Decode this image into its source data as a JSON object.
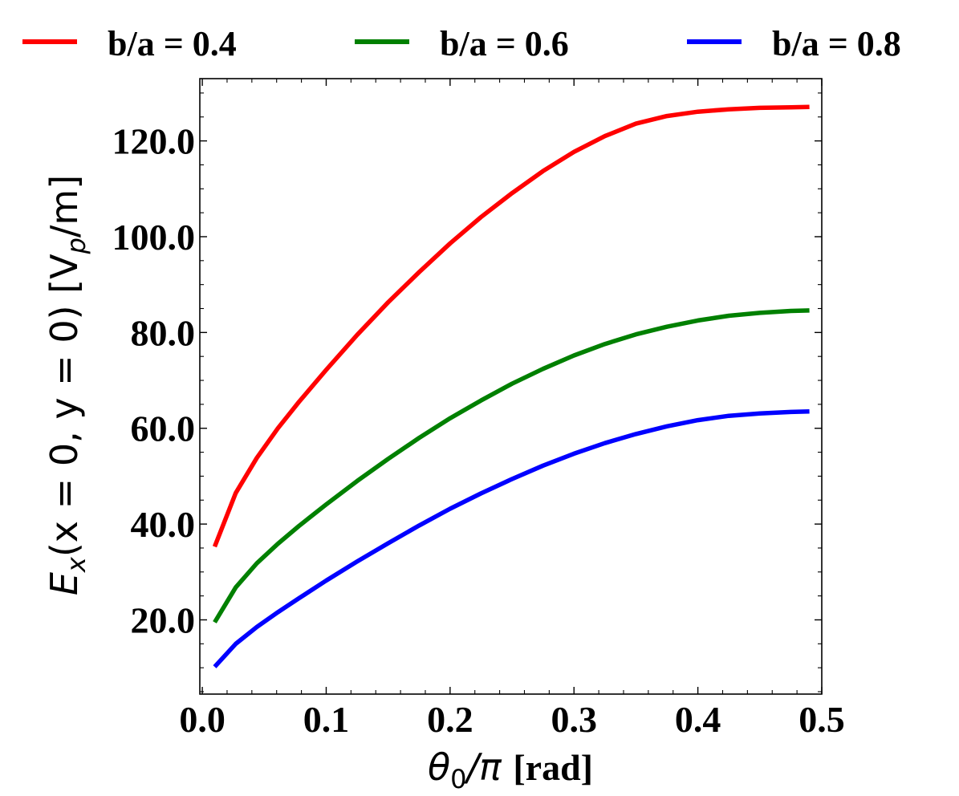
{
  "chart_data": {
    "type": "line",
    "xlabel": {
      "main": "θ",
      "sub": "0",
      "mid": "/π ",
      "unit": "[rad]"
    },
    "ylabel": {
      "main": "E",
      "sub": "x",
      "mid": "(x = 0, y = 0) [V",
      "sub2": "p",
      "end": "/m]"
    },
    "xlim": [
      -0.002,
      0.5
    ],
    "ylim": [
      4.5,
      133
    ],
    "xticks": [
      "0.0",
      "0.1",
      "0.2",
      "0.3",
      "0.4",
      "0.5"
    ],
    "xtick_values": [
      0.0,
      0.1,
      0.2,
      0.3,
      0.4,
      0.5
    ],
    "yticks": [
      "20.0",
      "40.0",
      "60.0",
      "80.0",
      "100.0",
      "120.0"
    ],
    "ytick_values": [
      20,
      40,
      60,
      80,
      100,
      120
    ],
    "legend_position": "top",
    "series": [
      {
        "name": "b/a = 0.4",
        "color": "#ff0000",
        "x": [
          0.01,
          0.027,
          0.044,
          0.061,
          0.078,
          0.1,
          0.125,
          0.15,
          0.175,
          0.2,
          0.225,
          0.25,
          0.275,
          0.3,
          0.325,
          0.35,
          0.375,
          0.4,
          0.425,
          0.45,
          0.475,
          0.49
        ],
        "y": [
          35.3,
          46.5,
          53.8,
          60.0,
          65.5,
          72.2,
          79.5,
          86.3,
          92.6,
          98.6,
          104.1,
          109.1,
          113.7,
          117.7,
          121.0,
          123.6,
          125.2,
          126.1,
          126.6,
          126.9,
          127.0,
          127.1
        ]
      },
      {
        "name": "b/a = 0.6",
        "color": "#008000",
        "x": [
          0.01,
          0.027,
          0.044,
          0.061,
          0.078,
          0.1,
          0.125,
          0.15,
          0.175,
          0.2,
          0.225,
          0.25,
          0.275,
          0.3,
          0.325,
          0.35,
          0.375,
          0.4,
          0.425,
          0.45,
          0.475,
          0.49
        ],
        "y": [
          19.5,
          26.8,
          31.8,
          35.9,
          39.6,
          44.1,
          49.0,
          53.6,
          58.0,
          62.1,
          65.8,
          69.3,
          72.4,
          75.2,
          77.6,
          79.6,
          81.2,
          82.5,
          83.5,
          84.1,
          84.5,
          84.6
        ]
      },
      {
        "name": "b/a = 0.8",
        "color": "#0000ff",
        "x": [
          0.01,
          0.027,
          0.044,
          0.061,
          0.078,
          0.1,
          0.125,
          0.15,
          0.175,
          0.2,
          0.225,
          0.25,
          0.275,
          0.3,
          0.325,
          0.35,
          0.375,
          0.4,
          0.425,
          0.45,
          0.475,
          0.49
        ],
        "y": [
          10.2,
          15.0,
          18.5,
          21.6,
          24.5,
          28.2,
          32.2,
          36.0,
          39.7,
          43.2,
          46.4,
          49.4,
          52.2,
          54.7,
          56.9,
          58.8,
          60.4,
          61.7,
          62.6,
          63.1,
          63.4,
          63.5
        ]
      }
    ]
  }
}
